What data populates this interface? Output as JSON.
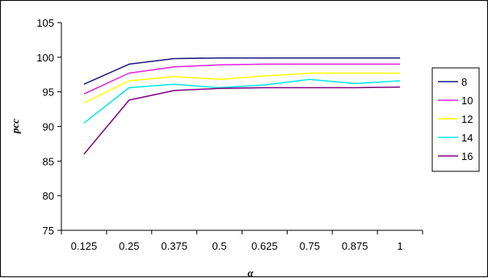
{
  "chart_data": {
    "type": "line",
    "title": "",
    "xlabel": "α",
    "ylabel": "pcc",
    "categories": [
      "0.125",
      "0.25",
      "0.375",
      "0.5",
      "0.625",
      "0.75",
      "0.875",
      "1"
    ],
    "ylim": [
      75,
      105
    ],
    "yticks": [
      "75",
      "80",
      "85",
      "90",
      "95",
      "100",
      "105"
    ],
    "grid": false,
    "legend_position": "right",
    "series": [
      {
        "name": "8",
        "color": "#1a1a7a",
        "values": [
          96.1,
          99.0,
          99.8,
          99.9,
          99.9,
          99.9,
          99.9,
          99.9
        ]
      },
      {
        "name": "10",
        "color": "#e020e0",
        "values": [
          94.7,
          97.7,
          98.6,
          98.9,
          99.0,
          99.0,
          99.0,
          99.0
        ]
      },
      {
        "name": "12",
        "color": "#ffff00",
        "values": [
          93.4,
          96.6,
          97.2,
          96.8,
          97.3,
          97.7,
          97.7,
          97.7
        ]
      },
      {
        "name": "14",
        "color": "#00e6e6",
        "values": [
          90.5,
          95.6,
          96.1,
          95.6,
          96.0,
          96.8,
          96.2,
          96.6
        ]
      },
      {
        "name": "16",
        "color": "#800080",
        "values": [
          86.0,
          93.8,
          95.2,
          95.5,
          95.6,
          95.6,
          95.6,
          95.7
        ]
      }
    ]
  }
}
